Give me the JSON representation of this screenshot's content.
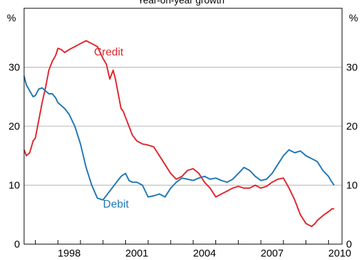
{
  "chart_data": {
    "type": "line",
    "subtitle": "Year-on-year growth",
    "y_unit_left": "%",
    "y_unit_right": "%",
    "ylim": [
      0,
      40
    ],
    "yticks": [
      0,
      10,
      20,
      30
    ],
    "xlim": [
      1996.5,
      2010.6
    ],
    "xticks": [
      1998,
      2001,
      2004,
      2007,
      2010
    ],
    "grid": true,
    "series": [
      {
        "name": "Credit",
        "color": "#e0262e",
        "x": [
          1996.5,
          1996.6,
          1996.75,
          1996.9,
          1997.0,
          1997.15,
          1997.3,
          1997.45,
          1997.6,
          1997.75,
          1997.9,
          1998.0,
          1998.15,
          1998.3,
          1998.5,
          1998.75,
          1999.0,
          1999.25,
          1999.5,
          1999.75,
          2000.0,
          2000.15,
          2000.3,
          2000.45,
          2000.55,
          2000.7,
          2000.8,
          2000.9,
          2001.0,
          2001.15,
          2001.3,
          2001.5,
          2001.75,
          2002.0,
          2002.25,
          2002.5,
          2002.75,
          2003.0,
          2003.25,
          2003.5,
          2003.75,
          2004.0,
          2004.25,
          2004.5,
          2004.75,
          2005.0,
          2005.25,
          2005.5,
          2005.75,
          2006.0,
          2006.25,
          2006.5,
          2006.75,
          2007.0,
          2007.25,
          2007.5,
          2007.75,
          2008.0,
          2008.25,
          2008.5,
          2008.75,
          2009.0,
          2009.25,
          2009.4,
          2009.5,
          2009.65,
          2009.8,
          2010.0,
          2010.15,
          2010.25
        ],
        "values": [
          16.0,
          15.0,
          15.5,
          17.5,
          18.0,
          21.0,
          24.0,
          26.5,
          29.5,
          31.0,
          32.0,
          33.2,
          33.0,
          32.5,
          33.0,
          33.5,
          34.0,
          34.5,
          34.0,
          33.5,
          31.5,
          30.5,
          28.0,
          29.5,
          28.0,
          25.0,
          23.0,
          22.5,
          21.5,
          20.0,
          18.5,
          17.5,
          17.0,
          16.8,
          16.5,
          15.0,
          13.5,
          12.0,
          11.0,
          11.5,
          12.5,
          12.8,
          12.0,
          10.5,
          9.5,
          8.0,
          8.5,
          9.0,
          9.5,
          9.8,
          9.5,
          9.5,
          10.0,
          9.5,
          9.8,
          10.5,
          11.0,
          11.2,
          9.5,
          7.5,
          5.0,
          3.5,
          3.0,
          3.5,
          4.0,
          4.5,
          5.0,
          5.5,
          6.0,
          6.0
        ]
      },
      {
        "name": "Debit",
        "color": "#1f77b4",
        "x": [
          1996.5,
          1996.6,
          1996.75,
          1996.9,
          1997.0,
          1997.15,
          1997.3,
          1997.45,
          1997.6,
          1997.75,
          1997.9,
          1998.0,
          1998.15,
          1998.3,
          1998.5,
          1998.75,
          1999.0,
          1999.25,
          1999.5,
          1999.75,
          2000.0,
          2000.2,
          2000.4,
          2000.6,
          2000.8,
          2001.0,
          2001.15,
          2001.3,
          2001.5,
          2001.75,
          2002.0,
          2002.25,
          2002.5,
          2002.75,
          2003.0,
          2003.25,
          2003.5,
          2003.75,
          2004.0,
          2004.25,
          2004.5,
          2004.75,
          2005.0,
          2005.25,
          2005.5,
          2005.75,
          2006.0,
          2006.25,
          2006.5,
          2006.75,
          2007.0,
          2007.25,
          2007.5,
          2007.75,
          2008.0,
          2008.25,
          2008.5,
          2008.75,
          2009.0,
          2009.25,
          2009.5,
          2009.75,
          2010.0,
          2010.15,
          2010.25
        ],
        "values": [
          28.5,
          27.0,
          26.0,
          25.0,
          25.2,
          26.3,
          26.5,
          26.0,
          25.5,
          25.5,
          24.8,
          24.0,
          23.5,
          23.0,
          22.0,
          20.0,
          17.0,
          13.0,
          10.0,
          7.8,
          7.5,
          8.5,
          9.5,
          10.5,
          11.5,
          12.0,
          10.8,
          10.5,
          10.5,
          10.0,
          8.0,
          8.2,
          8.5,
          8.0,
          9.5,
          10.5,
          11.2,
          11.0,
          10.8,
          11.2,
          11.5,
          11.0,
          11.2,
          10.8,
          10.5,
          11.0,
          12.0,
          13.0,
          12.5,
          11.5,
          10.8,
          11.0,
          12.0,
          13.5,
          15.0,
          16.0,
          15.5,
          15.8,
          15.0,
          14.5,
          14.0,
          12.5,
          11.5,
          10.5,
          10.0
        ]
      }
    ],
    "labels": [
      {
        "text": "Credit",
        "series": 0,
        "x": 1999.6,
        "y": 32.0
      },
      {
        "text": "Debit",
        "series": 1,
        "x": 2000.0,
        "y": 6.2
      }
    ]
  }
}
